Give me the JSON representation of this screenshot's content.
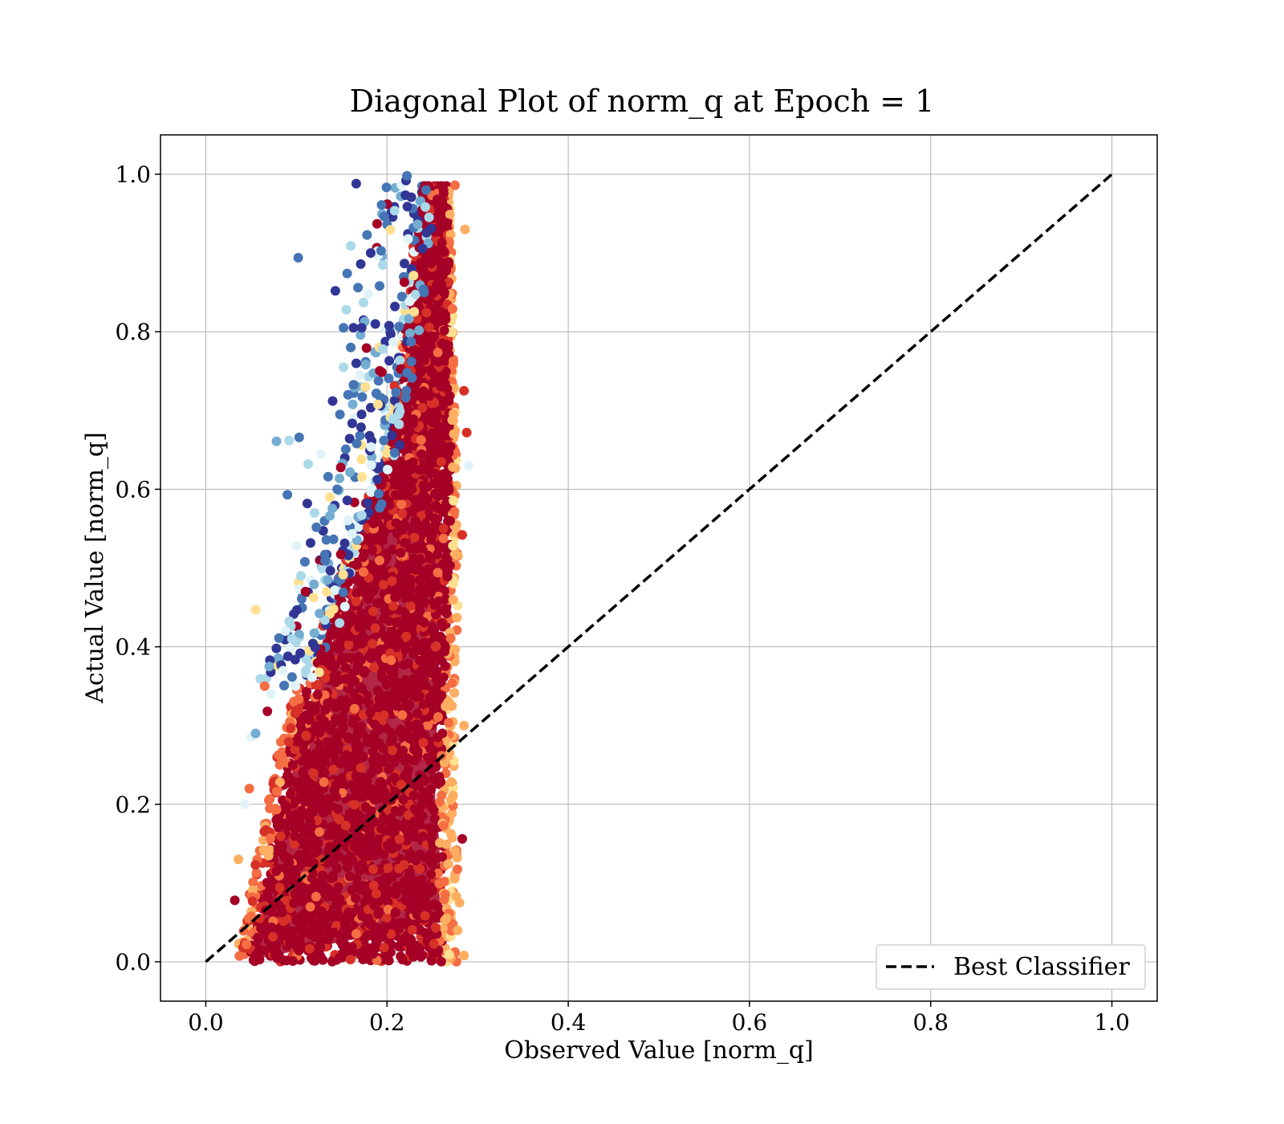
{
  "chart_data": {
    "type": "scatter",
    "title": "Diagonal Plot of norm_q at Epoch = 1",
    "xlabel": "Observed Value [norm_q]",
    "ylabel": "Actual Value [norm_q]",
    "xlim": [
      -0.05,
      1.05
    ],
    "ylim": [
      -0.05,
      1.05
    ],
    "x_ticks": [
      "0.0",
      "0.2",
      "0.4",
      "0.6",
      "0.8",
      "1.0"
    ],
    "y_ticks": [
      "0.0",
      "0.2",
      "0.4",
      "0.6",
      "0.8",
      "1.0"
    ],
    "x_tick_values": [
      0.0,
      0.2,
      0.4,
      0.6,
      0.8,
      1.0
    ],
    "y_tick_values": [
      0.0,
      0.2,
      0.4,
      0.6,
      0.8,
      1.0
    ],
    "grid": true,
    "legend": {
      "placement": "lower-right",
      "entries": [
        "Best Classifier"
      ]
    },
    "reference_line": {
      "name": "Best Classifier",
      "x": [
        0.0,
        1.0
      ],
      "y": [
        0.0,
        1.0
      ],
      "style": "dashed",
      "color": "#000000"
    },
    "colormap": [
      "#a50026",
      "#d73027",
      "#f46d43",
      "#fdae61",
      "#fee090",
      "#e0f3f8",
      "#abd9e9",
      "#74add1",
      "#4575b4",
      "#313695"
    ],
    "scatter_points": [
      {
        "x": 0.166,
        "y": 0.988,
        "color": "#313695"
      },
      {
        "x": 0.221,
        "y": 0.992,
        "color": "#313695"
      },
      {
        "x": 0.222,
        "y": 0.998,
        "color": "#4575b4"
      },
      {
        "x": 0.102,
        "y": 0.894,
        "color": "#4575b4"
      },
      {
        "x": 0.143,
        "y": 0.852,
        "color": "#313695"
      },
      {
        "x": 0.156,
        "y": 0.874,
        "color": "#4575b4"
      },
      {
        "x": 0.16,
        "y": 0.909,
        "color": "#abd9e9"
      },
      {
        "x": 0.178,
        "y": 0.923,
        "color": "#4575b4"
      },
      {
        "x": 0.194,
        "y": 0.961,
        "color": "#4575b4"
      },
      {
        "x": 0.171,
        "y": 0.886,
        "color": "#313695"
      },
      {
        "x": 0.182,
        "y": 0.9,
        "color": "#313695"
      },
      {
        "x": 0.189,
        "y": 0.937,
        "color": "#a50026"
      },
      {
        "x": 0.168,
        "y": 0.856,
        "color": "#4575b4"
      },
      {
        "x": 0.174,
        "y": 0.837,
        "color": "#abd9e9"
      },
      {
        "x": 0.152,
        "y": 0.805,
        "color": "#4575b4"
      },
      {
        "x": 0.163,
        "y": 0.805,
        "color": "#313695"
      },
      {
        "x": 0.172,
        "y": 0.805,
        "color": "#313695"
      },
      {
        "x": 0.155,
        "y": 0.828,
        "color": "#abd9e9"
      },
      {
        "x": 0.16,
        "y": 0.78,
        "color": "#4575b4"
      },
      {
        "x": 0.166,
        "y": 0.76,
        "color": "#313695"
      },
      {
        "x": 0.152,
        "y": 0.755,
        "color": "#abd9e9"
      },
      {
        "x": 0.14,
        "y": 0.712,
        "color": "#313695"
      },
      {
        "x": 0.148,
        "y": 0.695,
        "color": "#4575b4"
      },
      {
        "x": 0.157,
        "y": 0.72,
        "color": "#4575b4"
      },
      {
        "x": 0.17,
        "y": 0.745,
        "color": "#e0f3f8"
      },
      {
        "x": 0.176,
        "y": 0.73,
        "color": "#fee090"
      },
      {
        "x": 0.103,
        "y": 0.666,
        "color": "#4575b4"
      },
      {
        "x": 0.078,
        "y": 0.661,
        "color": "#74add1"
      },
      {
        "x": 0.092,
        "y": 0.662,
        "color": "#abd9e9"
      },
      {
        "x": 0.09,
        "y": 0.593,
        "color": "#4575b4"
      },
      {
        "x": 0.113,
        "y": 0.632,
        "color": "#abd9e9"
      },
      {
        "x": 0.127,
        "y": 0.645,
        "color": "#e0f3f8"
      },
      {
        "x": 0.135,
        "y": 0.616,
        "color": "#4575b4"
      },
      {
        "x": 0.112,
        "y": 0.582,
        "color": "#313695"
      },
      {
        "x": 0.12,
        "y": 0.57,
        "color": "#abd9e9"
      },
      {
        "x": 0.137,
        "y": 0.59,
        "color": "#fee090"
      },
      {
        "x": 0.145,
        "y": 0.6,
        "color": "#4575b4"
      },
      {
        "x": 0.1,
        "y": 0.528,
        "color": "#e0f3f8"
      },
      {
        "x": 0.105,
        "y": 0.49,
        "color": "#abd9e9"
      },
      {
        "x": 0.11,
        "y": 0.47,
        "color": "#a50026"
      },
      {
        "x": 0.055,
        "y": 0.447,
        "color": "#fee090"
      },
      {
        "x": 0.088,
        "y": 0.42,
        "color": "#e0f3f8"
      },
      {
        "x": 0.095,
        "y": 0.41,
        "color": "#abd9e9"
      },
      {
        "x": 0.07,
        "y": 0.375,
        "color": "#74add1"
      },
      {
        "x": 0.065,
        "y": 0.35,
        "color": "#f46d43"
      },
      {
        "x": 0.072,
        "y": 0.34,
        "color": "#e0f3f8"
      },
      {
        "x": 0.05,
        "y": 0.285,
        "color": "#e0f3f8"
      },
      {
        "x": 0.055,
        "y": 0.29,
        "color": "#74add1"
      },
      {
        "x": 0.068,
        "y": 0.318,
        "color": "#a50026"
      },
      {
        "x": 0.048,
        "y": 0.22,
        "color": "#f46d43"
      },
      {
        "x": 0.043,
        "y": 0.2,
        "color": "#e0f3f8"
      },
      {
        "x": 0.036,
        "y": 0.13,
        "color": "#fdae61"
      },
      {
        "x": 0.032,
        "y": 0.078,
        "color": "#a50026"
      },
      {
        "x": 0.275,
        "y": 0.986,
        "color": "#f46d43"
      },
      {
        "x": 0.286,
        "y": 0.93,
        "color": "#fdae61"
      },
      {
        "x": 0.285,
        "y": 0.725,
        "color": "#d73027"
      },
      {
        "x": 0.288,
        "y": 0.672,
        "color": "#d73027"
      },
      {
        "x": 0.29,
        "y": 0.63,
        "color": "#e0f3f8"
      },
      {
        "x": 0.283,
        "y": 0.542,
        "color": "#d73027"
      },
      {
        "x": 0.285,
        "y": 0.3,
        "color": "#fdae61"
      },
      {
        "x": 0.283,
        "y": 0.156,
        "color": "#a50026"
      },
      {
        "x": 0.28,
        "y": 0.075,
        "color": "#fdae61"
      },
      {
        "x": 0.285,
        "y": 0.008,
        "color": "#fdae61"
      }
    ],
    "density_clusters": [
      {
        "description": "dense band of points",
        "x_range": [
          0.03,
          0.28
        ],
        "y_range": [
          0.0,
          0.99
        ]
      }
    ]
  }
}
